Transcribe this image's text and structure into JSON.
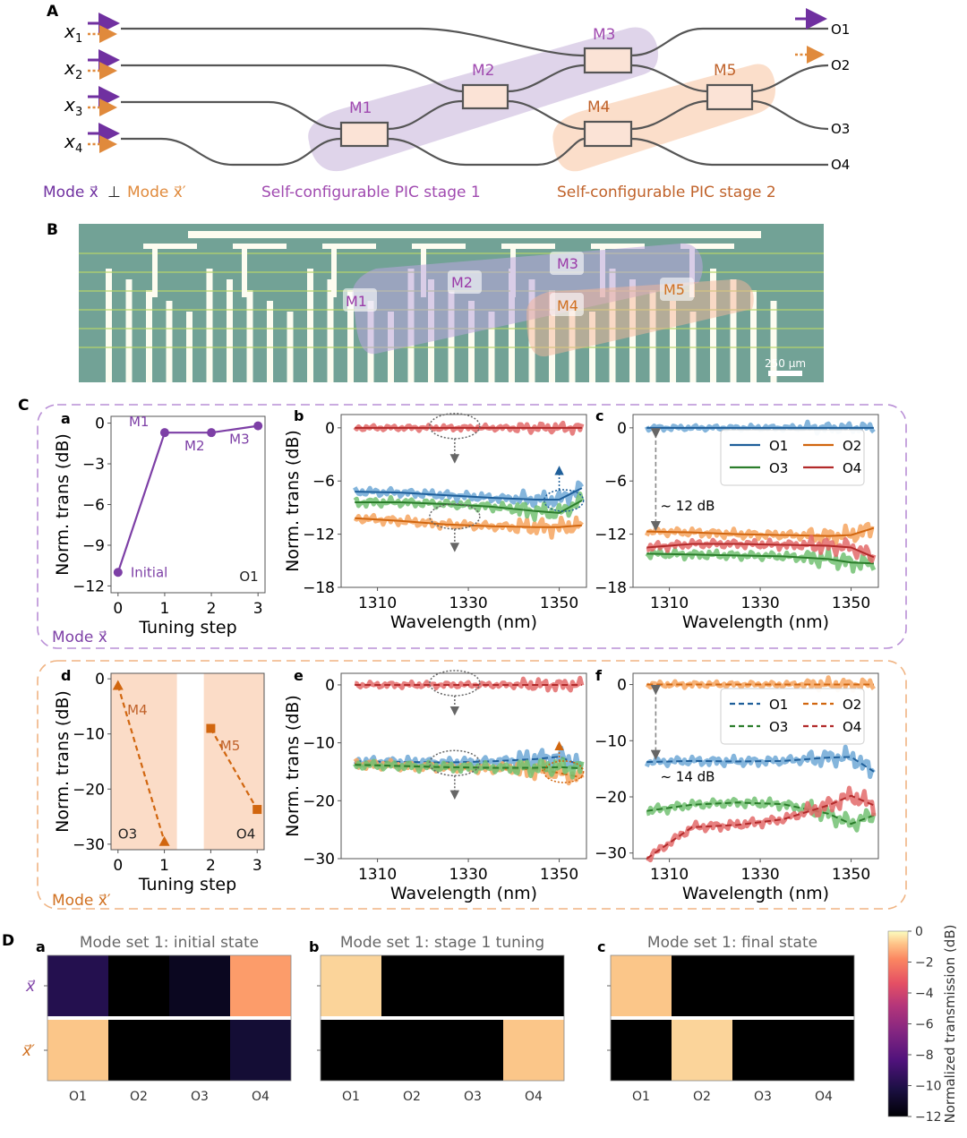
{
  "figure": {
    "panel_labels": {
      "A": "A",
      "B": "B",
      "C": "C",
      "D": "D"
    }
  },
  "circuit": {
    "inputs": [
      "x1",
      "x2",
      "x3",
      "x4"
    ],
    "input_subscripts": [
      "1",
      "2",
      "3",
      "4"
    ],
    "input_base": "x",
    "outputs": [
      "O1",
      "O2",
      "O3",
      "O4"
    ],
    "mzis": [
      "M1",
      "M2",
      "M3",
      "M4",
      "M5"
    ],
    "mode_legend": {
      "mode_x": "Mode x⃗",
      "perp": "⊥",
      "mode_xp": "Mode x⃗′"
    },
    "stage1_label": "Self-configurable PIC stage 1",
    "stage2_label": "Self-configurable PIC stage 2",
    "colors": {
      "purple": "#7030a0",
      "orange": "#e08a3c",
      "stage1_fill": "#dccfe8",
      "stage2_fill": "#fbdcc7",
      "mzi_fill": "#fbe3d6",
      "waveguide": "#555555"
    }
  },
  "chip_photo": {
    "labels": [
      "M1",
      "M2",
      "M3",
      "M4",
      "M5"
    ],
    "scale_bar": "250 μm"
  },
  "panel_C": {
    "mode_label_top": "Mode x⃗",
    "mode_label_bottom": "Mode x⃗′"
  },
  "chart_data": [
    {
      "id": "Ca",
      "type": "line",
      "panel": "a",
      "xlabel": "Tuning step",
      "ylabel": "Norm. trans (dB)",
      "x": [
        0,
        1,
        2,
        3
      ],
      "xticks": [
        "0",
        "1",
        "2",
        "3"
      ],
      "yticks": [
        "0",
        "−3",
        "−6",
        "−9",
        "−12"
      ],
      "ylim": [
        -12.5,
        0.5
      ],
      "xlim": [
        -0.15,
        3.15
      ],
      "series": [
        {
          "name": "O1",
          "values": [
            -11.0,
            -0.7,
            -0.7,
            -0.2
          ],
          "color": "#7d3fa6"
        }
      ],
      "annotations": [
        "Initial",
        "M1",
        "M2",
        "M3",
        "O1"
      ]
    },
    {
      "id": "Cb",
      "type": "line",
      "panel": "b",
      "xlabel": "Wavelength (nm)",
      "ylabel": "Norm. trans (dB)",
      "xticks": [
        "1310",
        "1330",
        "1350"
      ],
      "yticks": [
        "0",
        "−6",
        "−12",
        "−18"
      ],
      "xlim": [
        1302,
        1356
      ],
      "ylim": [
        -18,
        1.5
      ],
      "x": [
        1305,
        1315,
        1325,
        1335,
        1345,
        1350,
        1355
      ],
      "series": [
        {
          "name": "O1",
          "values": [
            -7.2,
            -7.3,
            -7.6,
            -7.9,
            -8.1,
            -8.1,
            -6.8
          ],
          "color": "#1f5f9a",
          "light": "#6fa8d6"
        },
        {
          "name": "O2",
          "values": [
            -10.2,
            -10.5,
            -10.9,
            -11.1,
            -11.2,
            -11.2,
            -11.0
          ],
          "color": "#d1660f",
          "light": "#f6a45f"
        },
        {
          "name": "O3",
          "values": [
            -8.4,
            -8.4,
            -8.6,
            -8.9,
            -9.4,
            -9.6,
            -8.2
          ],
          "color": "#2b7d2b",
          "light": "#72c172"
        },
        {
          "name": "O4",
          "values": [
            0,
            0,
            0,
            0,
            0,
            0,
            0
          ],
          "color": "#b22a2a",
          "light": "#e36a6a"
        }
      ]
    },
    {
      "id": "Cc",
      "type": "line",
      "panel": "c",
      "xlabel": "Wavelength (nm)",
      "xticks": [
        "1310",
        "1330",
        "1350"
      ],
      "yticks": [
        "0",
        "−6",
        "−12",
        "−18"
      ],
      "xlim": [
        1302,
        1356
      ],
      "ylim": [
        -18,
        1.5
      ],
      "x": [
        1305,
        1315,
        1325,
        1335,
        1345,
        1350,
        1355
      ],
      "series": [
        {
          "name": "O1",
          "values": [
            0,
            0,
            0,
            0,
            0,
            0,
            0
          ],
          "color": "#1f5f9a",
          "light": "#6fa8d6"
        },
        {
          "name": "O2",
          "values": [
            -11.7,
            -11.8,
            -12.0,
            -12.1,
            -12.2,
            -12.1,
            -11.3
          ],
          "color": "#d1660f",
          "light": "#f6a45f"
        },
        {
          "name": "O3",
          "values": [
            -14.2,
            -14.3,
            -14.4,
            -14.5,
            -14.8,
            -15.2,
            -15.3
          ],
          "color": "#2b7d2b",
          "light": "#72c172"
        },
        {
          "name": "O4",
          "values": [
            -13.5,
            -13.1,
            -13.1,
            -13.2,
            -13.3,
            -13.5,
            -14.6
          ],
          "color": "#b22a2a",
          "light": "#e36a6a"
        }
      ],
      "legend": [
        "O1",
        "O2",
        "O3",
        "O4"
      ],
      "legend_position": "upper-right",
      "annotation": "~ 12 dB"
    },
    {
      "id": "Cd",
      "type": "line",
      "panel": "d",
      "xlabel": "Tuning step",
      "ylabel": "Norm. trans (dB)",
      "xticks": [
        "0",
        "1",
        "2",
        "3"
      ],
      "yticks": [
        "0",
        "−10",
        "−20",
        "−30"
      ],
      "ylim": [
        -31,
        1
      ],
      "xlim": [
        -0.15,
        3.15
      ],
      "series": [
        {
          "name": "O3 (M4)",
          "x": [
            0,
            1
          ],
          "values": [
            -1.2,
            -29.5
          ],
          "marker": "triangle",
          "color": "#d1660f"
        },
        {
          "name": "O4 (M5)",
          "x": [
            2,
            3
          ],
          "values": [
            -9.0,
            -23.7
          ],
          "marker": "square",
          "color": "#d1660f"
        }
      ],
      "annotations": [
        "M4",
        "M5",
        "O3",
        "O4"
      ]
    },
    {
      "id": "Ce",
      "type": "line",
      "panel": "e",
      "xlabel": "Wavelength (nm)",
      "ylabel": "Norm. trans (dB)",
      "xticks": [
        "1310",
        "1330",
        "1350"
      ],
      "yticks": [
        "0",
        "−10",
        "−20",
        "−30"
      ],
      "xlim": [
        1302,
        1356
      ],
      "ylim": [
        -30,
        2
      ],
      "x": [
        1305,
        1315,
        1325,
        1335,
        1345,
        1350,
        1355
      ],
      "series": [
        {
          "name": "O1",
          "values": [
            -13.2,
            -13.3,
            -13.4,
            -13.2,
            -12.8,
            -12.4,
            -14.0
          ],
          "color": "#1f5f9a",
          "light": "#6fa8d6"
        },
        {
          "name": "O2",
          "values": [
            -13.6,
            -14.0,
            -14.3,
            -14.4,
            -14.6,
            -15.2,
            -16.0
          ],
          "color": "#d1660f",
          "light": "#f6a45f"
        },
        {
          "name": "O3",
          "values": [
            -13.8,
            -14.0,
            -14.2,
            -14.3,
            -14.3,
            -14.2,
            -14.4
          ],
          "color": "#2b7d2b",
          "light": "#72c172"
        },
        {
          "name": "O4",
          "values": [
            0,
            0,
            0,
            0,
            0,
            0,
            0
          ],
          "color": "#b22a2a",
          "light": "#e36a6a"
        }
      ]
    },
    {
      "id": "Cf",
      "type": "line",
      "panel": "f",
      "xlabel": "Wavelength (nm)",
      "xticks": [
        "1310",
        "1330",
        "1350"
      ],
      "yticks": [
        "0",
        "−10",
        "−20",
        "−30"
      ],
      "xlim": [
        1302,
        1356
      ],
      "ylim": [
        -31,
        2
      ],
      "x": [
        1305,
        1315,
        1325,
        1335,
        1345,
        1350,
        1355
      ],
      "series": [
        {
          "name": "O1",
          "values": [
            -13.8,
            -13.6,
            -13.7,
            -13.6,
            -13.0,
            -12.9,
            -15.5
          ],
          "color": "#1f5f9a",
          "light": "#6fa8d6"
        },
        {
          "name": "O2",
          "values": [
            0,
            0,
            0,
            0,
            0,
            0,
            0
          ],
          "color": "#d1660f",
          "light": "#f6a45f"
        },
        {
          "name": "O3",
          "values": [
            -22.5,
            -21.4,
            -21.0,
            -21.3,
            -23.0,
            -24.8,
            -23.3
          ],
          "color": "#2b7d2b",
          "light": "#72c172"
        },
        {
          "name": "O4",
          "values": [
            -31.0,
            -25.4,
            -25.0,
            -24.0,
            -21.5,
            -19.8,
            -21.5
          ],
          "color": "#b22a2a",
          "light": "#e36a6a"
        }
      ],
      "legend": [
        "O1",
        "O2",
        "O3",
        "O4"
      ],
      "legend_position": "upper-right",
      "line_style": "dashed",
      "annotation": "~ 14 dB"
    },
    {
      "id": "Da",
      "type": "heatmap",
      "panel": "a",
      "title": "Mode set 1: initial state",
      "columns": [
        "O1",
        "O2",
        "O3",
        "O4"
      ],
      "rows": [
        "x⃗",
        "x⃗′"
      ],
      "values": [
        [
          -9.5,
          -12,
          -11,
          -3
        ],
        [
          -1.5,
          -12,
          -12,
          -10
        ]
      ]
    },
    {
      "id": "Db",
      "type": "heatmap",
      "panel": "b",
      "title": "Mode set 1: stage 1 tuning",
      "columns": [
        "O1",
        "O2",
        "O3",
        "O4"
      ],
      "rows": [
        "x⃗",
        "x⃗′"
      ],
      "values": [
        [
          -1.3,
          -12,
          -12,
          -12
        ],
        [
          -12,
          -12,
          -12,
          -1.6
        ]
      ]
    },
    {
      "id": "Dc",
      "type": "heatmap",
      "panel": "c",
      "title": "Mode set 1: final state",
      "columns": [
        "O1",
        "O2",
        "O3",
        "O4"
      ],
      "rows": [
        "x⃗",
        "x⃗′"
      ],
      "values": [
        [
          -1.6,
          -12,
          -12,
          -12
        ],
        [
          -12,
          -1.2,
          -12,
          -12
        ]
      ]
    },
    {
      "id": "colorbar",
      "type": "heatmap",
      "label": "Normalized transmission (dB)",
      "ticks": [
        "0",
        "−2",
        "−4",
        "−6",
        "−8",
        "−10",
        "−12"
      ],
      "range": [
        -12,
        0
      ],
      "colormap": "magma"
    }
  ]
}
